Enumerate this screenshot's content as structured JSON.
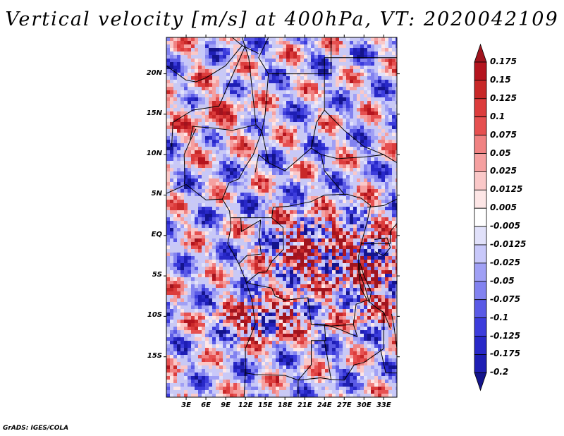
{
  "title": "Vertical velocity [m/s] at 400hPa, VT: 2020042109",
  "footer": "GrADS: IGES/COLA",
  "map": {
    "lat_range": [
      -20,
      24.5
    ],
    "lon_range": [
      0,
      35
    ],
    "lat_labels": [
      {
        "lat": 20,
        "label": "20N"
      },
      {
        "lat": 15,
        "label": "15N"
      },
      {
        "lat": 10,
        "label": "10N"
      },
      {
        "lat": 5,
        "label": "5N"
      },
      {
        "lat": 0,
        "label": "EQ"
      },
      {
        "lat": -5,
        "label": "5S"
      },
      {
        "lat": -10,
        "label": "10S"
      },
      {
        "lat": -15,
        "label": "15S"
      }
    ],
    "lon_labels": [
      {
        "lon": 3,
        "label": "3E"
      },
      {
        "lon": 6,
        "label": "6E"
      },
      {
        "lon": 9,
        "label": "9E"
      },
      {
        "lon": 12,
        "label": "12E"
      },
      {
        "lon": 15,
        "label": "15E"
      },
      {
        "lon": 18,
        "label": "18E"
      },
      {
        "lon": 21,
        "label": "21E"
      },
      {
        "lon": 24,
        "label": "24E"
      },
      {
        "lon": 27,
        "label": "27E"
      },
      {
        "lon": 30,
        "label": "30E"
      },
      {
        "lon": 33,
        "label": "33E"
      }
    ],
    "field_colors": {
      "ascent": "#d83a3a",
      "descent": "#6a6ae0",
      "neutral": "#ffffff"
    },
    "boundary_color": "#000000"
  },
  "colorbar": {
    "levels": [
      "0.175",
      "0.15",
      "0.125",
      "0.1",
      "0.075",
      "0.05",
      "0.025",
      "0.0125",
      "0.005",
      "-0.005",
      "-0.0125",
      "-0.025",
      "-0.05",
      "-0.075",
      "-0.1",
      "-0.125",
      "-0.175",
      "-0.2"
    ],
    "colors": [
      "#a0141e",
      "#b4141e",
      "#c82828",
      "#dc3c3c",
      "#e65050",
      "#f08282",
      "#f5a0a0",
      "#fac8c8",
      "#fde6e6",
      "#ffffff",
      "#e1e1fa",
      "#c8c8fa",
      "#a0a0f5",
      "#8282f0",
      "#5a5ae6",
      "#3c3cdc",
      "#2828c8",
      "#1e1eb4",
      "#14148c"
    ]
  }
}
